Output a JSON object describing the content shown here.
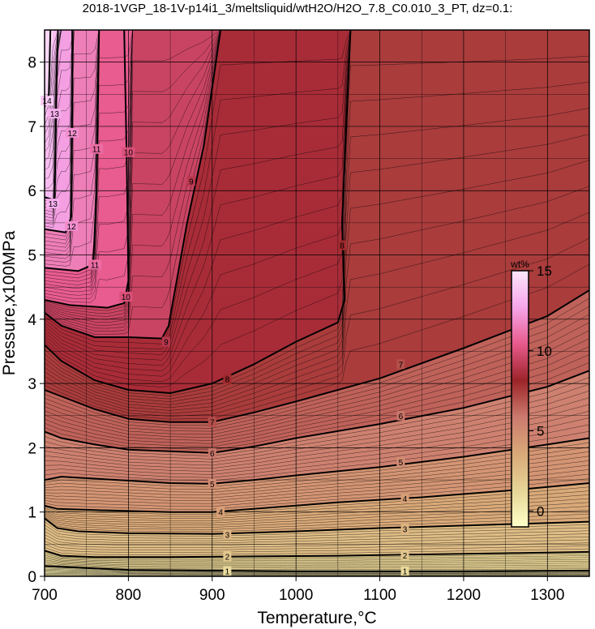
{
  "chart_data": {
    "type": "heatmap",
    "title": "2018-1VGP_18-1V-p14i1_3/meltsliquid/wtH2O/H2O_7.8_C0.010_3_PT, dz=0.1:",
    "xlabel": "Temperature,°C",
    "ylabel": "Pressure,x100MPa",
    "xlim": [
      700,
      1350
    ],
    "ylim": [
      0,
      8.5
    ],
    "x_ticks": [
      {
        "value": 700,
        "label": "700"
      },
      {
        "value": 800,
        "label": "800"
      },
      {
        "value": 900,
        "label": "900"
      },
      {
        "value": 1000,
        "label": "1000"
      },
      {
        "value": 1100,
        "label": "1100"
      },
      {
        "value": 1200,
        "label": "1200"
      },
      {
        "value": 1300,
        "label": "1300"
      }
    ],
    "y_ticks": [
      {
        "value": 0,
        "label": "0"
      },
      {
        "value": 1,
        "label": "1"
      },
      {
        "value": 2,
        "label": "2"
      },
      {
        "value": 3,
        "label": "3"
      },
      {
        "value": 4,
        "label": "4"
      },
      {
        "value": 5,
        "label": "5"
      },
      {
        "value": 6,
        "label": "6"
      },
      {
        "value": 7,
        "label": "7"
      },
      {
        "value": 8,
        "label": "8"
      }
    ],
    "grid": true,
    "minor_contour_interval": 0.1,
    "colorbar": {
      "unit": "wt%",
      "range": [
        -1,
        15
      ],
      "ticks": [
        {
          "value": 0,
          "label": "0"
        },
        {
          "value": 5,
          "label": "5"
        },
        {
          "value": 10,
          "label": "10"
        },
        {
          "value": 15,
          "label": "15"
        }
      ],
      "colors": [
        "#ffffc8",
        "#e6d596",
        "#d9a878",
        "#cc7a6e",
        "#9c2428",
        "#e85a8c",
        "#f5a6ea",
        "#fde6fb"
      ],
      "placement": "right"
    },
    "contours": [
      {
        "level": "1",
        "label_points": [
          [
            918,
            0.08
          ],
          [
            1130,
            0.08
          ]
        ],
        "points": [
          [
            700,
            0.16
          ],
          [
            750,
            0.13
          ],
          [
            800,
            0.1
          ],
          [
            900,
            0.09
          ],
          [
            1000,
            0.08
          ],
          [
            1100,
            0.08
          ],
          [
            1200,
            0.08
          ],
          [
            1350,
            0.09
          ]
        ]
      },
      {
        "level": "2",
        "label_points": [
          [
            918,
            0.31
          ],
          [
            1130,
            0.33
          ]
        ],
        "points": [
          [
            700,
            0.4
          ],
          [
            720,
            0.32
          ],
          [
            760,
            0.3
          ],
          [
            850,
            0.3
          ],
          [
            950,
            0.31
          ],
          [
            1050,
            0.32
          ],
          [
            1150,
            0.34
          ],
          [
            1250,
            0.36
          ],
          [
            1350,
            0.38
          ]
        ]
      },
      {
        "level": "3",
        "label_points": [
          [
            918,
            0.65
          ],
          [
            1130,
            0.74
          ]
        ],
        "points": [
          [
            700,
            0.9
          ],
          [
            715,
            0.75
          ],
          [
            740,
            0.7
          ],
          [
            800,
            0.67
          ],
          [
            900,
            0.66
          ],
          [
            1000,
            0.7
          ],
          [
            1100,
            0.75
          ],
          [
            1200,
            0.79
          ],
          [
            1350,
            0.85
          ]
        ]
      },
      {
        "level": "4",
        "label_points": [
          [
            910,
            1.0
          ],
          [
            1130,
            1.21
          ]
        ],
        "points": [
          [
            700,
            1.1
          ],
          [
            715,
            1.05
          ],
          [
            760,
            1.03
          ],
          [
            850,
            1.0
          ],
          [
            900,
            1.0
          ],
          [
            950,
            1.05
          ],
          [
            1050,
            1.15
          ],
          [
            1150,
            1.23
          ],
          [
            1250,
            1.33
          ],
          [
            1350,
            1.45
          ]
        ]
      },
      {
        "level": "5",
        "label_points": [
          [
            900,
            1.44
          ],
          [
            1125,
            1.78
          ]
        ],
        "points": [
          [
            700,
            1.5
          ],
          [
            720,
            1.55
          ],
          [
            760,
            1.52
          ],
          [
            850,
            1.45
          ],
          [
            900,
            1.44
          ],
          [
            950,
            1.5
          ],
          [
            1000,
            1.57
          ],
          [
            1100,
            1.7
          ],
          [
            1200,
            1.86
          ],
          [
            1300,
            2.05
          ],
          [
            1350,
            2.15
          ]
        ]
      },
      {
        "level": "6",
        "label_points": [
          [
            900,
            1.92
          ],
          [
            1125,
            2.5
          ]
        ],
        "points": [
          [
            700,
            2.25
          ],
          [
            720,
            2.15
          ],
          [
            760,
            2.05
          ],
          [
            800,
            1.97
          ],
          [
            900,
            1.92
          ],
          [
            950,
            2.02
          ],
          [
            1000,
            2.15
          ],
          [
            1100,
            2.37
          ],
          [
            1200,
            2.62
          ],
          [
            1300,
            2.95
          ],
          [
            1350,
            3.2
          ]
        ]
      },
      {
        "level": "7",
        "label_points": [
          [
            900,
            2.4
          ],
          [
            1125,
            3.3
          ]
        ],
        "points": [
          [
            700,
            2.9
          ],
          [
            720,
            2.8
          ],
          [
            760,
            2.6
          ],
          [
            800,
            2.45
          ],
          [
            850,
            2.4
          ],
          [
            900,
            2.4
          ],
          [
            950,
            2.55
          ],
          [
            1000,
            2.72
          ],
          [
            1100,
            3.08
          ],
          [
            1200,
            3.55
          ],
          [
            1300,
            4.05
          ],
          [
            1350,
            4.45
          ]
        ]
      },
      {
        "level": "8",
        "label_points": [
          [
            918,
            3.07
          ],
          [
            1055,
            5.15
          ]
        ],
        "points": [
          [
            700,
            3.6
          ],
          [
            720,
            3.35
          ],
          [
            760,
            3.05
          ],
          [
            800,
            2.9
          ],
          [
            850,
            2.85
          ],
          [
            900,
            3.0
          ],
          [
            950,
            3.3
          ],
          [
            1000,
            3.65
          ],
          [
            1050,
            3.95
          ],
          [
            1058,
            4.3
          ],
          [
            1055,
            5.5
          ],
          [
            1060,
            7.0
          ],
          [
            1065,
            8.5
          ]
        ]
      },
      {
        "level": "9",
        "label_points": [
          [
            845,
            3.65
          ],
          [
            875,
            6.15
          ]
        ],
        "points": [
          [
            700,
            4.1
          ],
          [
            720,
            3.9
          ],
          [
            760,
            3.72
          ],
          [
            800,
            3.72
          ],
          [
            840,
            3.7
          ],
          [
            848,
            3.9
          ],
          [
            870,
            5.5
          ],
          [
            890,
            6.7
          ],
          [
            910,
            8.5
          ]
        ]
      },
      {
        "level": "10",
        "label_points": [
          [
            797,
            4.35
          ],
          [
            800,
            6.6
          ]
        ],
        "points": [
          [
            700,
            4.3
          ],
          [
            730,
            4.22
          ],
          [
            775,
            4.18
          ],
          [
            795,
            4.25
          ],
          [
            800,
            4.6
          ],
          [
            798,
            6.5
          ],
          [
            795,
            8.5
          ]
        ]
      },
      {
        "level": "11",
        "label_points": [
          [
            760,
            4.85
          ],
          [
            762,
            6.65
          ]
        ],
        "points": [
          [
            700,
            4.8
          ],
          [
            740,
            4.75
          ],
          [
            758,
            4.85
          ],
          [
            762,
            6.0
          ],
          [
            765,
            8.5
          ]
        ]
      },
      {
        "level": "12",
        "label_points": [
          [
            732,
            5.45
          ],
          [
            733,
            6.9
          ]
        ],
        "points": [
          [
            700,
            5.4
          ],
          [
            725,
            5.35
          ],
          [
            732,
            5.6
          ],
          [
            733,
            7.5
          ],
          [
            733,
            8.5
          ]
        ]
      },
      {
        "level": "13",
        "label_points": [
          [
            710,
            5.8
          ],
          [
            712,
            7.2
          ]
        ],
        "points": [
          [
            700,
            5.9
          ],
          [
            712,
            5.85
          ],
          [
            714,
            7.5
          ],
          [
            716,
            8.5
          ]
        ]
      },
      {
        "level": "14",
        "label_points": [
          [
            703,
            7.4
          ]
        ],
        "points": [
          [
            700,
            7.3
          ],
          [
            705,
            7.5
          ],
          [
            707,
            8.5
          ]
        ]
      }
    ]
  }
}
